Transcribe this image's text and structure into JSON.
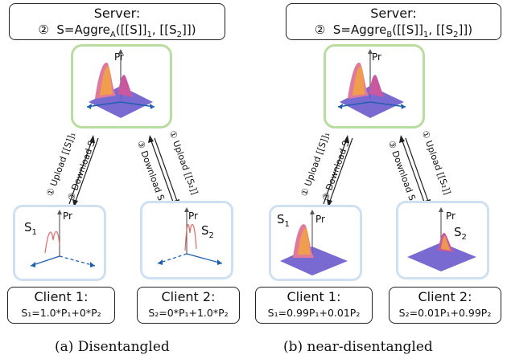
{
  "panels": [
    {
      "server": {
        "title": "Server:",
        "step": "②",
        "formula_prefix": "S=Aggre",
        "formula_sub": "A",
        "formula_rest": "([[S]]",
        "formula_sub1": "1",
        "formula_mid": ", [[S",
        "formula_sub2": "2",
        "formula_end": "]])"
      },
      "pr_label": "Pr",
      "left_link": {
        "upload": "① Upload [[S]]₁",
        "download": "③ Download S"
      },
      "right_link": {
        "download": "③ Download S",
        "upload": "① Upload [[S₂]]"
      },
      "client1": {
        "s_label": "S",
        "s_sub": "1",
        "pr": "Pr",
        "title": "Client 1:",
        "formula": "S₁=1.0*P₁+0*P₂"
      },
      "client2": {
        "s_label": "S",
        "s_sub": "2",
        "pr": "Pr",
        "title": "Client 2:",
        "formula": "S₂=0*P₁+1.0*P₂"
      },
      "caption": "(a) Disentangled"
    },
    {
      "server": {
        "title": "Server:",
        "step": "②",
        "formula_prefix": "S=Aggre",
        "formula_sub": "B",
        "formula_rest": "([[S]]",
        "formula_sub1": "1",
        "formula_mid": ", [[S",
        "formula_sub2": "2",
        "formula_end": "]])"
      },
      "pr_label": "Pr",
      "left_link": {
        "upload": "① Upload [[S]]₁",
        "download": "③ Download S"
      },
      "right_link": {
        "download": "③ Download S",
        "upload": "① Upload [[S₂]]"
      },
      "client1": {
        "s_label": "S",
        "s_sub": "1",
        "pr": "Pr",
        "title": "Client 1:",
        "formula": "S₁=0.99P₁+0.01P₂"
      },
      "client2": {
        "s_label": "S",
        "s_sub": "2",
        "pr": "Pr",
        "title": "Client 2:",
        "formula": "S₂=0.01P₁+0.99P₂"
      },
      "caption": "(b) near-disentangled"
    }
  ],
  "colors": {
    "server_frame": "#b9dca0",
    "client_frame": "#cfe0f3",
    "axis_blue": "#1f5fb0",
    "surface_purple": "#6a5acd",
    "peak_orange": "#f2a541",
    "curve_red": "#e06666"
  }
}
